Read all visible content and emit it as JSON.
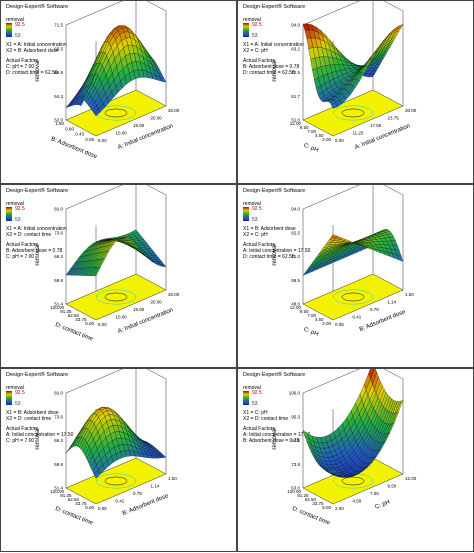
{
  "panels": [
    {
      "header": "Design-Expert® Software",
      "legend_title": "removal",
      "cmax": "92.5",
      "cmin": "53",
      "x1": "X1 = A: Initial concentration",
      "x2": "X2 = B: Adsorbent dose",
      "actual_title": "Actual Factors",
      "actual": [
        "C: pH = 7.00",
        "D: contact time = 62.50"
      ],
      "zlabel": "removal",
      "xlabel": "A: Initial concentration",
      "ylabel": "B: Adsorbent dose",
      "zticks": [
        "71.5",
        "65.5",
        "59.9",
        "54.3",
        "52.0"
      ],
      "xticks": [
        "5.00",
        "10.00",
        "15.00",
        "20.00",
        "30.00"
      ],
      "yticks": [
        "1.50",
        "0.80",
        "0.43",
        "0.05"
      ],
      "shape": "dome"
    },
    {
      "header": "Design-Expert® Software",
      "legend_title": "removal",
      "cmax": "92.5",
      "cmin": "53",
      "x1": "X1 = A: Initial concentration",
      "x2": "X2 = C: pH",
      "actual_title": "Actual Factors",
      "actual": [
        "B: Adsorbent dose = 0.78",
        "D: contact time = 62.50"
      ],
      "zlabel": "removal",
      "xlabel": "A: Initial concentration",
      "ylabel": "C: pH",
      "zticks": [
        "94.0",
        "83.2",
        "72.5",
        "61.7",
        "51.0"
      ],
      "xticks": [
        "5.00",
        "11.25",
        "17.50",
        "23.75",
        "30.00"
      ],
      "yticks": [
        "12.00",
        "9.50",
        "7.00",
        "4.50",
        "2.00"
      ],
      "shape": "saddle"
    },
    {
      "header": "Design-Expert® Software",
      "legend_title": "removal",
      "cmax": "92.5",
      "cmin": "53",
      "x1": "X1 = A: Initial concentration",
      "x2": "X2 = D: contact time",
      "actual_title": "Actual Factors",
      "actual": [
        "B: Adsorbent dose = 0.78",
        "C: pH = 7.00"
      ],
      "zlabel": "removal",
      "xlabel": "A: Initial concentration",
      "ylabel": "D: contact time",
      "zticks": [
        "81.0",
        "73.6",
        "66.2",
        "58.8",
        "51.4"
      ],
      "xticks": [
        "5.00",
        "10.00",
        "15.00",
        "20.00",
        "30.00"
      ],
      "yticks": [
        "120.00",
        "91.25",
        "62.50",
        "33.75",
        "5.00"
      ],
      "shape": "ridge"
    },
    {
      "header": "Design-Expert® Software",
      "legend_title": "removal",
      "cmax": "92.5",
      "cmin": "53",
      "x1": "X1 = B: Adsorbent dose",
      "x2": "X2 = C: pH",
      "actual_title": "Actual Factors",
      "actual": [
        "A: Initial concentration = 17.50",
        "D: contact time = 62.50"
      ],
      "zlabel": "removal",
      "xlabel": "B: Adsorbent dose",
      "ylabel": "C: pH",
      "zticks": [
        "94.0",
        "82.5",
        "71.0",
        "59.5",
        "48.0"
      ],
      "xticks": [
        "0.05",
        "0.41",
        "0.78",
        "1.14",
        "1.50"
      ],
      "yticks": [
        "12.00",
        "9.50",
        "7.00",
        "4.50",
        "2.00"
      ],
      "shape": "wave"
    },
    {
      "header": "Design-Expert® Software",
      "legend_title": "removal",
      "cmax": "92.5",
      "cmin": "53",
      "x1": "X1 = B: Adsorbent dose",
      "x2": "X2 = D: contact time",
      "actual_title": "Actual Factors",
      "actual": [
        "A: Initial concentration = 17.50",
        "C: pH = 7.00"
      ],
      "zlabel": "removal",
      "xlabel": "B: Adsorbent dose",
      "ylabel": "D: contact time",
      "zticks": [
        "81.0",
        "73.6",
        "66.2",
        "58.8",
        "51.4"
      ],
      "xticks": [
        "0.05",
        "0.41",
        "0.78",
        "1.14",
        "1.50"
      ],
      "yticks": [
        "120.00",
        "91.25",
        "62.50",
        "33.75",
        "5.00"
      ],
      "shape": "hill"
    },
    {
      "header": "Design-Expert® Software",
      "legend_title": "removal",
      "cmax": "92.5",
      "cmin": "53",
      "x1": "X1 = C: pH",
      "x2": "X2 = D: contact time",
      "actual_title": "Actual Factors",
      "actual": [
        "A: Initial concentration = 17.50",
        "B: Adsorbent dose = 0.78"
      ],
      "zlabel": "removal",
      "xlabel": "C: pH",
      "ylabel": "D: contact time",
      "zticks": [
        "106.0",
        "95.3",
        "84.5",
        "73.8",
        "63.0"
      ],
      "xticks": [
        "2.00",
        "4.50",
        "7.00",
        "9.50",
        "12.00"
      ],
      "yticks": [
        "120.00",
        "91.25",
        "62.50",
        "33.75",
        "5.00"
      ],
      "shape": "bowl"
    }
  ],
  "chart_data": {
    "type": "surface",
    "charts": 6,
    "z_variable": "removal",
    "color_scale": {
      "max": 92.5,
      "min": 53,
      "colors": [
        "#c00000",
        "#e0d000",
        "#20b020",
        "#2060c0",
        "#1c1cb0"
      ]
    }
  }
}
